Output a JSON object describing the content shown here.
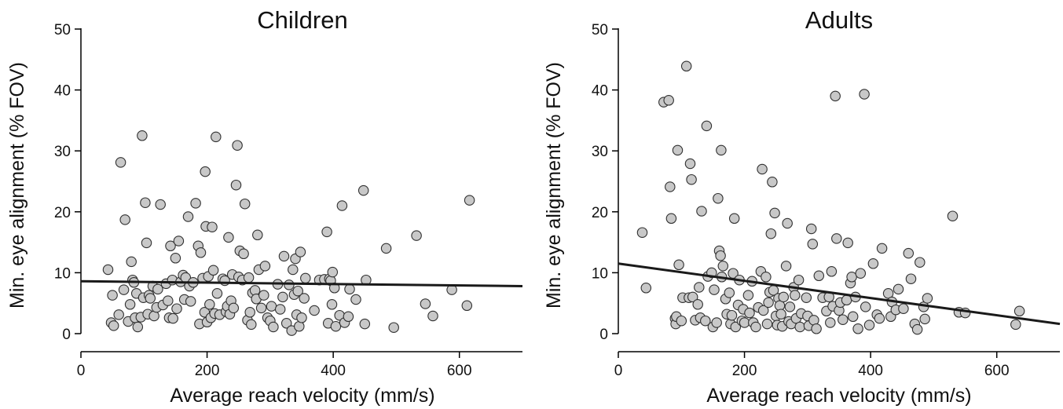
{
  "chart_data": [
    {
      "type": "scatter",
      "title": "Children",
      "xlabel": "Average reach velocity (mm/s)",
      "ylabel": "Min. eye alignment (% FOV)",
      "xlim": [
        0,
        700
      ],
      "ylim": [
        0,
        50
      ],
      "xticks": [
        "0",
        "200",
        "400",
        "600"
      ],
      "yticks": [
        "0",
        "10",
        "20",
        "30",
        "40",
        "50"
      ],
      "fit_line": {
        "x": [
          0,
          700
        ],
        "y": [
          8.6,
          7.8
        ]
      },
      "points": [
        [
          43,
          10.5
        ],
        [
          48,
          1.8
        ],
        [
          50,
          6.3
        ],
        [
          52,
          1.3
        ],
        [
          60,
          3.1
        ],
        [
          63,
          28.1
        ],
        [
          68,
          7.2
        ],
        [
          70,
          18.7
        ],
        [
          75,
          2.0
        ],
        [
          78,
          4.8
        ],
        [
          80,
          11.8
        ],
        [
          82,
          8.8
        ],
        [
          84,
          8.4
        ],
        [
          86,
          2.6
        ],
        [
          88,
          6.6
        ],
        [
          90,
          1.1
        ],
        [
          95,
          2.7
        ],
        [
          97,
          32.5
        ],
        [
          99,
          5.9
        ],
        [
          102,
          21.5
        ],
        [
          104,
          14.9
        ],
        [
          106,
          3.2
        ],
        [
          108,
          6.3
        ],
        [
          110,
          5.8
        ],
        [
          114,
          7.8
        ],
        [
          116,
          2.9
        ],
        [
          120,
          4.3
        ],
        [
          122,
          7.3
        ],
        [
          126,
          21.2
        ],
        [
          130,
          4.7
        ],
        [
          135,
          8.2
        ],
        [
          138,
          5.4
        ],
        [
          140,
          2.6
        ],
        [
          142,
          14.4
        ],
        [
          145,
          8.8
        ],
        [
          146,
          2.5
        ],
        [
          150,
          12.4
        ],
        [
          152,
          4.1
        ],
        [
          155,
          15.2
        ],
        [
          158,
          8.5
        ],
        [
          162,
          9.6
        ],
        [
          164,
          5.6
        ],
        [
          166,
          9.2
        ],
        [
          170,
          19.2
        ],
        [
          172,
          7.8
        ],
        [
          174,
          5.3
        ],
        [
          178,
          8.4
        ],
        [
          182,
          21.4
        ],
        [
          186,
          14.4
        ],
        [
          188,
          1.6
        ],
        [
          190,
          13.3
        ],
        [
          193,
          9.1
        ],
        [
          196,
          3.5
        ],
        [
          197,
          26.6
        ],
        [
          198,
          17.6
        ],
        [
          200,
          1.9
        ],
        [
          202,
          9.4
        ],
        [
          204,
          4.8
        ],
        [
          206,
          2.6
        ],
        [
          208,
          17.5
        ],
        [
          210,
          10.4
        ],
        [
          212,
          3.3
        ],
        [
          214,
          32.3
        ],
        [
          216,
          6.6
        ],
        [
          220,
          3.1
        ],
        [
          225,
          9.0
        ],
        [
          228,
          8.7
        ],
        [
          230,
          3.6
        ],
        [
          232,
          4.5
        ],
        [
          234,
          15.8
        ],
        [
          236,
          3.2
        ],
        [
          238,
          5.4
        ],
        [
          240,
          9.7
        ],
        [
          242,
          4.2
        ],
        [
          246,
          24.4
        ],
        [
          248,
          30.9
        ],
        [
          250,
          9.3
        ],
        [
          252,
          13.6
        ],
        [
          256,
          8.8
        ],
        [
          258,
          13.1
        ],
        [
          260,
          21.3
        ],
        [
          264,
          2.2
        ],
        [
          266,
          9.2
        ],
        [
          268,
          3.5
        ],
        [
          270,
          1.5
        ],
        [
          272,
          6.7
        ],
        [
          276,
          7.1
        ],
        [
          278,
          5.7
        ],
        [
          280,
          16.2
        ],
        [
          282,
          10.5
        ],
        [
          286,
          4.2
        ],
        [
          290,
          6.3
        ],
        [
          292,
          11.1
        ],
        [
          296,
          2.6
        ],
        [
          300,
          2.1
        ],
        [
          302,
          4.5
        ],
        [
          305,
          1.1
        ],
        [
          312,
          8.1
        ],
        [
          316,
          4.0
        ],
        [
          320,
          6.0
        ],
        [
          322,
          12.7
        ],
        [
          326,
          1.7
        ],
        [
          330,
          8.0
        ],
        [
          334,
          0.5
        ],
        [
          336,
          10.5
        ],
        [
          338,
          6.4
        ],
        [
          340,
          12.3
        ],
        [
          342,
          3.1
        ],
        [
          344,
          7.0
        ],
        [
          346,
          1.2
        ],
        [
          348,
          13.4
        ],
        [
          350,
          2.6
        ],
        [
          354,
          5.8
        ],
        [
          356,
          9.1
        ],
        [
          370,
          3.8
        ],
        [
          378,
          8.8
        ],
        [
          386,
          8.9
        ],
        [
          390,
          16.7
        ],
        [
          392,
          1.7
        ],
        [
          394,
          9.0
        ],
        [
          396,
          8.7
        ],
        [
          398,
          4.8
        ],
        [
          399,
          10.1
        ],
        [
          402,
          7.5
        ],
        [
          404,
          1.2
        ],
        [
          410,
          3.0
        ],
        [
          414,
          21.0
        ],
        [
          418,
          1.8
        ],
        [
          424,
          2.8
        ],
        [
          426,
          7.3
        ],
        [
          436,
          5.6
        ],
        [
          448,
          23.5
        ],
        [
          450,
          1.6
        ],
        [
          452,
          8.8
        ],
        [
          484,
          14.0
        ],
        [
          496,
          1.0
        ],
        [
          532,
          16.1
        ],
        [
          546,
          4.9
        ],
        [
          558,
          2.9
        ],
        [
          588,
          7.2
        ],
        [
          612,
          4.6
        ],
        [
          616,
          21.9
        ]
      ]
    },
    {
      "type": "scatter",
      "title": "Adults",
      "xlabel": "Average reach velocity (mm/s)",
      "ylabel": "Min. eye alignment (% FOV)",
      "xlim": [
        0,
        700
      ],
      "ylim": [
        0,
        50
      ],
      "xticks": [
        "0",
        "200",
        "400",
        "600"
      ],
      "yticks": [
        "0",
        "10",
        "20",
        "30",
        "40",
        "50"
      ],
      "fit_line": {
        "x": [
          0,
          700
        ],
        "y": [
          11.5,
          1.6
        ]
      },
      "points": [
        [
          38,
          16.6
        ],
        [
          44,
          7.5
        ],
        [
          72,
          38.0
        ],
        [
          80,
          38.3
        ],
        [
          82,
          24.1
        ],
        [
          84,
          18.9
        ],
        [
          90,
          2.5
        ],
        [
          91,
          1.6
        ],
        [
          92,
          2.8
        ],
        [
          94,
          30.1
        ],
        [
          96,
          11.3
        ],
        [
          100,
          2.1
        ],
        [
          102,
          5.9
        ],
        [
          108,
          43.9
        ],
        [
          112,
          5.9
        ],
        [
          114,
          27.9
        ],
        [
          116,
          25.3
        ],
        [
          118,
          6.0
        ],
        [
          122,
          2.2
        ],
        [
          126,
          4.8
        ],
        [
          128,
          7.6
        ],
        [
          130,
          2.6
        ],
        [
          132,
          20.1
        ],
        [
          138,
          2.1
        ],
        [
          140,
          34.1
        ],
        [
          142,
          9.4
        ],
        [
          148,
          10.0
        ],
        [
          150,
          1.1
        ],
        [
          152,
          7.2
        ],
        [
          156,
          1.8
        ],
        [
          158,
          22.2
        ],
        [
          160,
          13.6
        ],
        [
          162,
          12.8
        ],
        [
          163,
          30.1
        ],
        [
          164,
          9.3
        ],
        [
          166,
          11.1
        ],
        [
          170,
          5.7
        ],
        [
          172,
          3.2
        ],
        [
          176,
          6.7
        ],
        [
          178,
          1.6
        ],
        [
          180,
          3.0
        ],
        [
          182,
          9.9
        ],
        [
          184,
          18.9
        ],
        [
          186,
          1.1
        ],
        [
          190,
          4.7
        ],
        [
          192,
          8.8
        ],
        [
          196,
          2.1
        ],
        [
          198,
          4.0
        ],
        [
          200,
          1.8
        ],
        [
          206,
          6.3
        ],
        [
          208,
          3.4
        ],
        [
          212,
          8.6
        ],
        [
          214,
          1.8
        ],
        [
          218,
          1.1
        ],
        [
          222,
          4.3
        ],
        [
          226,
          10.2
        ],
        [
          228,
          27.0
        ],
        [
          230,
          3.8
        ],
        [
          234,
          9.3
        ],
        [
          236,
          1.6
        ],
        [
          238,
          5.1
        ],
        [
          240,
          6.8
        ],
        [
          242,
          16.4
        ],
        [
          244,
          24.9
        ],
        [
          246,
          7.1
        ],
        [
          248,
          19.8
        ],
        [
          250,
          2.9
        ],
        [
          252,
          1.4
        ],
        [
          254,
          5.8
        ],
        [
          256,
          4.6
        ],
        [
          258,
          3.2
        ],
        [
          260,
          1.2
        ],
        [
          262,
          6.0
        ],
        [
          266,
          11.1
        ],
        [
          268,
          18.1
        ],
        [
          270,
          2.0
        ],
        [
          272,
          4.4
        ],
        [
          274,
          1.6
        ],
        [
          278,
          7.6
        ],
        [
          280,
          6.3
        ],
        [
          282,
          2.5
        ],
        [
          286,
          8.8
        ],
        [
          288,
          1.1
        ],
        [
          290,
          3.3
        ],
        [
          298,
          5.9
        ],
        [
          300,
          2.9
        ],
        [
          302,
          1.3
        ],
        [
          306,
          17.2
        ],
        [
          308,
          14.7
        ],
        [
          310,
          2.2
        ],
        [
          314,
          0.8
        ],
        [
          318,
          9.5
        ],
        [
          324,
          5.9
        ],
        [
          330,
          3.7
        ],
        [
          334,
          6.0
        ],
        [
          336,
          1.8
        ],
        [
          338,
          10.2
        ],
        [
          340,
          4.5
        ],
        [
          344,
          39.0
        ],
        [
          346,
          15.6
        ],
        [
          350,
          3.8
        ],
        [
          352,
          5.1
        ],
        [
          356,
          2.3
        ],
        [
          362,
          5.5
        ],
        [
          364,
          14.9
        ],
        [
          368,
          8.3
        ],
        [
          370,
          9.3
        ],
        [
          372,
          2.8
        ],
        [
          376,
          6.0
        ],
        [
          380,
          0.8
        ],
        [
          384,
          9.9
        ],
        [
          390,
          39.3
        ],
        [
          392,
          4.4
        ],
        [
          398,
          1.4
        ],
        [
          404,
          11.5
        ],
        [
          410,
          3.1
        ],
        [
          414,
          2.5
        ],
        [
          418,
          14.0
        ],
        [
          428,
          6.6
        ],
        [
          432,
          2.8
        ],
        [
          434,
          5.2
        ],
        [
          440,
          3.9
        ],
        [
          444,
          7.3
        ],
        [
          452,
          4.1
        ],
        [
          460,
          13.2
        ],
        [
          464,
          9.0
        ],
        [
          470,
          1.6
        ],
        [
          474,
          0.7
        ],
        [
          478,
          11.7
        ],
        [
          484,
          4.4
        ],
        [
          486,
          2.4
        ],
        [
          490,
          5.8
        ],
        [
          530,
          19.3
        ],
        [
          540,
          3.5
        ],
        [
          550,
          3.4
        ],
        [
          630,
          1.5
        ],
        [
          636,
          3.7
        ]
      ]
    }
  ]
}
